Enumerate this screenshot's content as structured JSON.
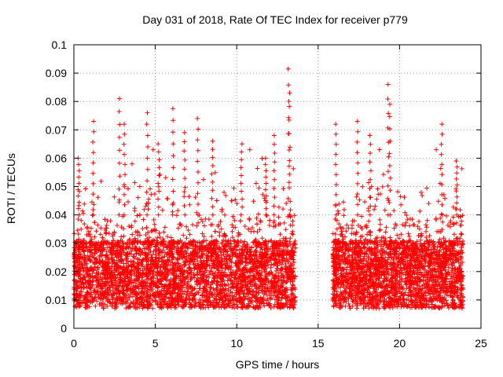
{
  "chart_data": {
    "type": "scatter",
    "title": "Day 031 of 2018, Rate Of TEC Index for receiver p779",
    "xlabel": "GPS time / hours",
    "ylabel": "ROTI / TECUs",
    "xlim": [
      0,
      25
    ],
    "ylim": [
      0,
      0.1
    ],
    "xticks": [
      0,
      5,
      10,
      15,
      20,
      25
    ],
    "yticks": [
      0,
      0.01,
      0.02,
      0.03,
      0.04,
      0.05,
      0.06,
      0.07,
      0.08,
      0.09,
      0.1
    ],
    "xtick_labels": [
      "0",
      "5",
      "10",
      "15",
      "20",
      "25"
    ],
    "ytick_labels": [
      "0",
      "0.01",
      "0.02",
      "0.03",
      "0.04",
      "0.05",
      "0.06",
      "0.07",
      "0.08",
      "0.09",
      "0.1"
    ],
    "grid": true,
    "marker": "+",
    "series_color": "#ff0000",
    "data_gap_hours": [
      13.6,
      15.9
    ],
    "segments": [
      {
        "name": "segment-1",
        "x_range": [
          0.0,
          13.6
        ],
        "typical_range": [
          0.005,
          0.035
        ]
      },
      {
        "name": "segment-2",
        "x_range": [
          15.9,
          23.9
        ],
        "typical_range": [
          0.005,
          0.035
        ]
      }
    ],
    "peaks": [
      {
        "x": 0.3,
        "y": 0.06
      },
      {
        "x": 1.2,
        "y": 0.073
      },
      {
        "x": 2.8,
        "y": 0.081
      },
      {
        "x": 3.1,
        "y": 0.072
      },
      {
        "x": 4.5,
        "y": 0.076
      },
      {
        "x": 5.2,
        "y": 0.065
      },
      {
        "x": 6.1,
        "y": 0.0775
      },
      {
        "x": 6.8,
        "y": 0.069
      },
      {
        "x": 7.6,
        "y": 0.074
      },
      {
        "x": 8.5,
        "y": 0.066
      },
      {
        "x": 10.3,
        "y": 0.065
      },
      {
        "x": 11.8,
        "y": 0.06
      },
      {
        "x": 12.3,
        "y": 0.068
      },
      {
        "x": 13.2,
        "y": 0.0915
      },
      {
        "x": 13.25,
        "y": 0.083
      },
      {
        "x": 16.1,
        "y": 0.072
      },
      {
        "x": 17.4,
        "y": 0.073
      },
      {
        "x": 18.2,
        "y": 0.068
      },
      {
        "x": 19.3,
        "y": 0.086
      },
      {
        "x": 19.4,
        "y": 0.079
      },
      {
        "x": 22.6,
        "y": 0.072
      },
      {
        "x": 23.5,
        "y": 0.059
      }
    ]
  }
}
